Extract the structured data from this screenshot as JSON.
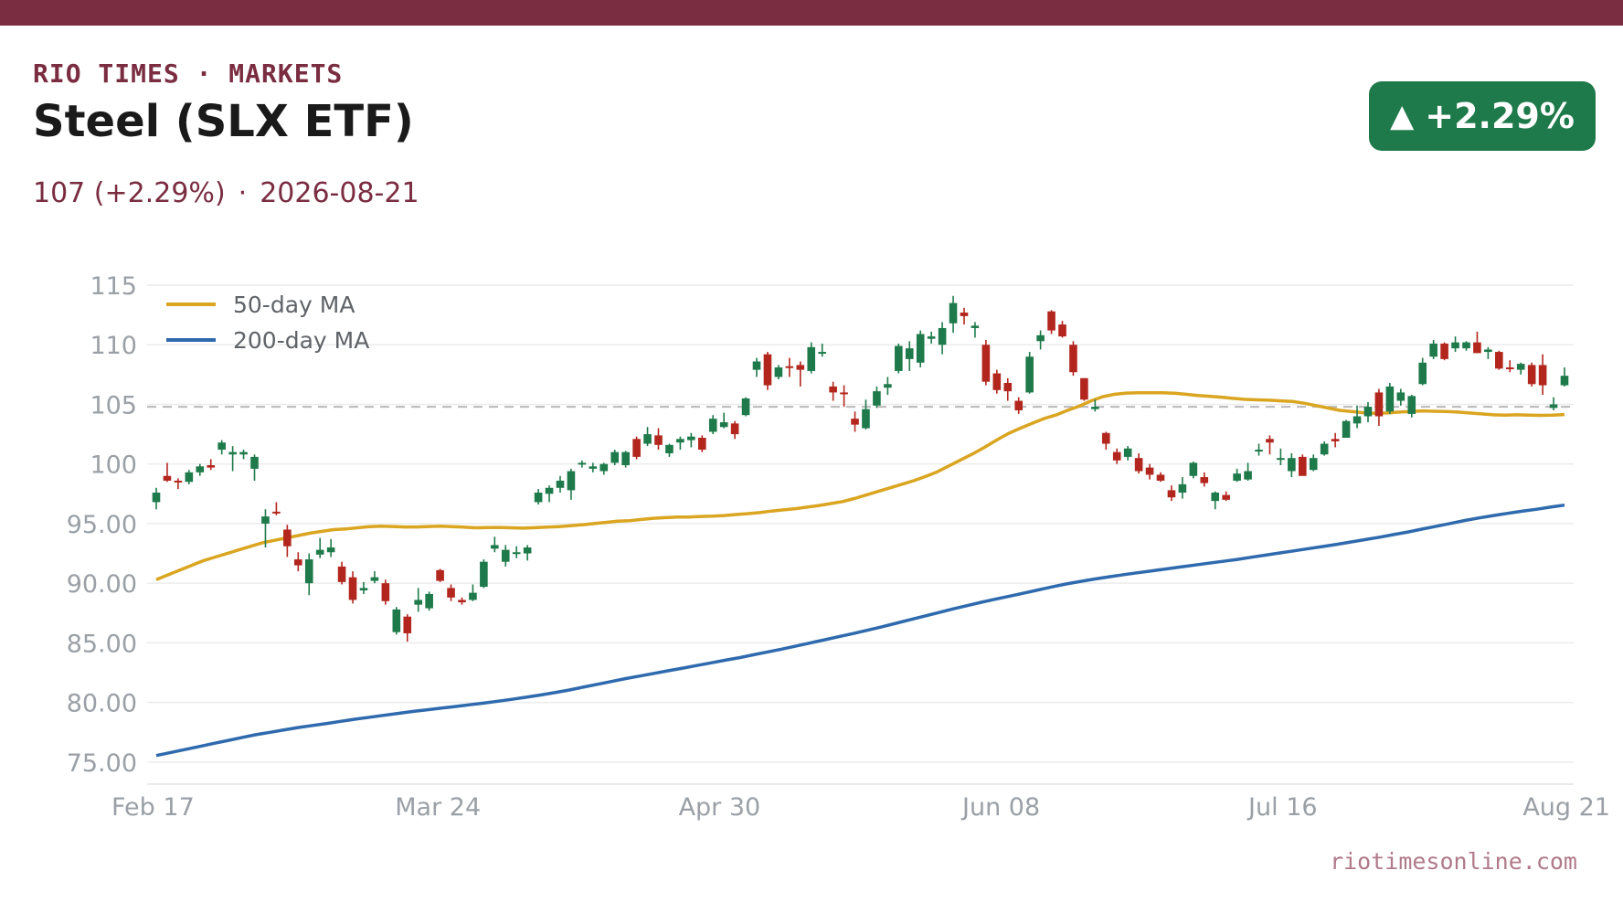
{
  "header": {
    "brand": "RIO TIMES · MARKETS",
    "title": "Steel (SLX ETF)",
    "price_text": "107 (+2.29%)",
    "separator": "·",
    "date": "2026-08-21",
    "badge_arrow": "▲",
    "badge_text": "+2.29%"
  },
  "footer": {
    "source": "riotimesonline.com"
  },
  "colors": {
    "brand": "#7a2c40",
    "up": "#1e7a4a",
    "down": "#b3261e",
    "ma50": "#daa520",
    "ma200": "#2e6aad",
    "grid": "#ececec",
    "tick": "#9aa0a6",
    "ref_line": "#b9b9b9",
    "footer": "#b07a8a",
    "legend_text": "#5f6368"
  },
  "chart_data": {
    "type": "candlestick",
    "title": "Steel (SLX ETF)",
    "y_tick_labels": [
      "75.00",
      "80.00",
      "85.00",
      "90.00",
      "95.00",
      "100",
      "105",
      "110",
      "115"
    ],
    "y_ticks": [
      75,
      80,
      85,
      90,
      95,
      100,
      105,
      110,
      115
    ],
    "ylim": [
      74.3,
      115
    ],
    "x_tick_labels": [
      "Feb 17",
      "Mar 24",
      "Apr 30",
      "Jun 08",
      "Jul 16",
      "Aug 21"
    ],
    "reference_line": 104.8,
    "grid": true,
    "legend_position": "top-left",
    "legend": [
      {
        "name": "50-day MA",
        "color_key": "ma50"
      },
      {
        "name": "200-day MA",
        "color_key": "ma200"
      }
    ],
    "candles_ohlc": [
      [
        96.8,
        98.0,
        96.2,
        97.6
      ],
      [
        99.0,
        100.1,
        98.5,
        98.6
      ],
      [
        98.6,
        98.8,
        97.9,
        98.5
      ],
      [
        98.5,
        99.5,
        98.3,
        99.3
      ],
      [
        99.3,
        100.0,
        99.0,
        99.8
      ],
      [
        99.9,
        100.4,
        99.5,
        99.7
      ],
      [
        101.2,
        102.0,
        100.8,
        101.8
      ],
      [
        100.8,
        101.5,
        99.4,
        101.0
      ],
      [
        100.8,
        101.2,
        100.4,
        101.0
      ],
      [
        99.6,
        100.8,
        98.6,
        100.6
      ],
      [
        95.0,
        96.2,
        93.0,
        95.6
      ],
      [
        96.0,
        96.8,
        95.7,
        95.9
      ],
      [
        94.5,
        94.9,
        92.2,
        93.1
      ],
      [
        92.0,
        92.6,
        91.0,
        91.5
      ],
      [
        90.0,
        92.5,
        89.0,
        92.0
      ],
      [
        92.4,
        93.8,
        92.1,
        92.8
      ],
      [
        92.6,
        93.7,
        92.2,
        93.0
      ],
      [
        91.4,
        91.8,
        89.9,
        90.1
      ],
      [
        90.5,
        91.0,
        88.3,
        88.6
      ],
      [
        89.4,
        90.1,
        89.1,
        89.6
      ],
      [
        90.2,
        91.0,
        90.0,
        90.5
      ],
      [
        90.0,
        90.3,
        88.2,
        88.5
      ],
      [
        85.9,
        88.0,
        85.7,
        87.8
      ],
      [
        87.2,
        87.4,
        85.1,
        85.8
      ],
      [
        88.2,
        89.6,
        87.6,
        88.6
      ],
      [
        87.9,
        89.3,
        87.7,
        89.1
      ],
      [
        91.1,
        91.2,
        90.1,
        90.2
      ],
      [
        89.6,
        89.9,
        88.5,
        88.8
      ],
      [
        88.6,
        88.8,
        88.2,
        88.4
      ],
      [
        88.6,
        89.9,
        88.5,
        89.2
      ],
      [
        89.7,
        92.0,
        89.6,
        91.8
      ],
      [
        92.9,
        93.9,
        92.6,
        93.2
      ],
      [
        91.8,
        93.2,
        91.4,
        92.8
      ],
      [
        92.6,
        93.1,
        92.1,
        92.6
      ],
      [
        92.5,
        93.2,
        91.9,
        93.0
      ],
      [
        96.8,
        97.9,
        96.6,
        97.6
      ],
      [
        97.5,
        98.2,
        96.8,
        98.0
      ],
      [
        98.0,
        99.0,
        97.6,
        98.6
      ],
      [
        97.8,
        99.6,
        97.0,
        99.4
      ],
      [
        100.0,
        100.3,
        99.7,
        100.1
      ],
      [
        99.6,
        100.1,
        99.3,
        99.8
      ],
      [
        99.4,
        100.1,
        99.1,
        100.0
      ],
      [
        100.1,
        101.2,
        99.9,
        101.0
      ],
      [
        99.9,
        101.1,
        99.7,
        101.0
      ],
      [
        102.1,
        102.3,
        100.4,
        100.6
      ],
      [
        101.7,
        103.1,
        101.5,
        102.5
      ],
      [
        102.4,
        103.0,
        101.2,
        101.6
      ],
      [
        100.9,
        101.7,
        100.6,
        101.6
      ],
      [
        101.8,
        102.3,
        101.2,
        102.1
      ],
      [
        102.0,
        102.6,
        101.4,
        102.3
      ],
      [
        102.2,
        102.4,
        101.0,
        101.2
      ],
      [
        102.7,
        104.1,
        102.5,
        103.8
      ],
      [
        103.1,
        104.3,
        103.0,
        103.5
      ],
      [
        103.4,
        103.6,
        102.1,
        102.5
      ],
      [
        104.1,
        105.6,
        104.0,
        105.5
      ],
      [
        107.9,
        108.9,
        107.3,
        108.6
      ],
      [
        109.2,
        109.4,
        106.2,
        106.6
      ],
      [
        107.3,
        108.3,
        107.1,
        108.1
      ],
      [
        108.2,
        108.9,
        107.3,
        108.1
      ],
      [
        108.3,
        108.6,
        106.5,
        107.9
      ],
      [
        107.8,
        110.2,
        107.6,
        109.8
      ],
      [
        109.3,
        110.1,
        109.0,
        109.4
      ],
      [
        106.5,
        106.9,
        105.3,
        106.0
      ],
      [
        106.0,
        106.6,
        104.8,
        105.9
      ],
      [
        103.8,
        104.4,
        102.7,
        103.3
      ],
      [
        103.0,
        105.4,
        102.9,
        104.6
      ],
      [
        104.9,
        106.5,
        104.7,
        106.1
      ],
      [
        106.4,
        107.3,
        105.8,
        106.7
      ],
      [
        107.8,
        110.1,
        107.6,
        109.9
      ],
      [
        108.8,
        110.3,
        107.8,
        109.7
      ],
      [
        108.5,
        111.2,
        108.1,
        110.9
      ],
      [
        110.5,
        111.1,
        110.1,
        110.7
      ],
      [
        110.0,
        111.9,
        109.2,
        111.4
      ],
      [
        111.8,
        114.1,
        111.0,
        113.5
      ],
      [
        112.7,
        113.1,
        111.7,
        112.4
      ],
      [
        111.4,
        111.9,
        110.6,
        111.6
      ],
      [
        110.0,
        110.4,
        106.6,
        106.9
      ],
      [
        107.6,
        107.9,
        105.9,
        106.2
      ],
      [
        106.8,
        107.2,
        105.3,
        106.1
      ],
      [
        105.3,
        105.6,
        104.2,
        104.5
      ],
      [
        106.0,
        109.4,
        105.9,
        109.0
      ],
      [
        110.3,
        111.2,
        109.6,
        110.8
      ],
      [
        112.8,
        112.9,
        110.9,
        111.2
      ],
      [
        111.7,
        112.0,
        110.6,
        110.7
      ],
      [
        110.0,
        110.3,
        107.4,
        107.7
      ],
      [
        107.2,
        107.2,
        105.3,
        105.4
      ],
      [
        104.6,
        105.4,
        104.4,
        104.8
      ],
      [
        102.6,
        102.7,
        101.2,
        101.7
      ],
      [
        101.0,
        101.3,
        100.0,
        100.3
      ],
      [
        100.6,
        101.5,
        100.3,
        101.3
      ],
      [
        100.5,
        100.9,
        99.2,
        99.4
      ],
      [
        99.7,
        100.0,
        98.7,
        99.1
      ],
      [
        99.1,
        99.3,
        98.5,
        98.6
      ],
      [
        97.8,
        98.2,
        96.9,
        97.2
      ],
      [
        97.6,
        98.9,
        97.1,
        98.3
      ],
      [
        99.0,
        100.2,
        98.8,
        100.1
      ],
      [
        98.9,
        99.3,
        98.1,
        98.4
      ],
      [
        96.9,
        97.7,
        96.2,
        97.6
      ],
      [
        97.4,
        97.7,
        96.9,
        97.0
      ],
      [
        98.6,
        99.6,
        98.5,
        99.2
      ],
      [
        98.7,
        100.1,
        98.6,
        99.4
      ],
      [
        101.1,
        101.7,
        100.7,
        101.2
      ],
      [
        102.1,
        102.4,
        100.8,
        101.8
      ],
      [
        100.5,
        101.3,
        99.9,
        100.5
      ],
      [
        99.4,
        100.9,
        98.9,
        100.5
      ],
      [
        100.6,
        100.8,
        99.0,
        99.0
      ],
      [
        99.5,
        100.8,
        99.4,
        100.5
      ],
      [
        100.8,
        101.9,
        100.7,
        101.7
      ],
      [
        102.1,
        102.6,
        101.4,
        101.9
      ],
      [
        102.2,
        103.7,
        102.2,
        103.6
      ],
      [
        103.4,
        104.9,
        103.0,
        104.0
      ],
      [
        104.0,
        105.2,
        103.5,
        104.8
      ],
      [
        106.0,
        106.3,
        103.2,
        104.0
      ],
      [
        104.4,
        106.8,
        104.2,
        106.5
      ],
      [
        105.3,
        106.3,
        104.9,
        106.0
      ],
      [
        104.2,
        105.8,
        103.9,
        105.7
      ],
      [
        106.7,
        108.9,
        106.6,
        108.5
      ],
      [
        109.0,
        110.4,
        108.8,
        110.1
      ],
      [
        110.1,
        110.2,
        108.7,
        108.8
      ],
      [
        109.7,
        110.7,
        109.4,
        110.2
      ],
      [
        109.7,
        110.3,
        109.5,
        110.2
      ],
      [
        110.2,
        111.1,
        109.3,
        109.3
      ],
      [
        109.4,
        109.8,
        108.8,
        109.6
      ],
      [
        109.4,
        109.5,
        107.9,
        108.0
      ],
      [
        108.1,
        108.7,
        107.7,
        108.0
      ],
      [
        107.9,
        108.5,
        107.5,
        108.4
      ],
      [
        108.3,
        108.5,
        106.5,
        106.7
      ],
      [
        108.3,
        109.2,
        105.8,
        106.6
      ],
      [
        104.7,
        105.6,
        104.5,
        105.0
      ],
      [
        106.6,
        108.1,
        106.5,
        107.4
      ]
    ],
    "series": [
      {
        "name": "50-day MA",
        "values": [
          90.3,
          90.7,
          91.1,
          91.5,
          91.9,
          92.2,
          92.5,
          92.8,
          93.1,
          93.4,
          93.6,
          93.8,
          94.0,
          94.2,
          94.35,
          94.5,
          94.55,
          94.65,
          94.75,
          94.78,
          94.76,
          94.72,
          94.72,
          94.76,
          94.78,
          94.75,
          94.7,
          94.65,
          94.67,
          94.68,
          94.65,
          94.62,
          94.66,
          94.7,
          94.75,
          94.82,
          94.9,
          95.0,
          95.1,
          95.2,
          95.25,
          95.35,
          95.45,
          95.5,
          95.55,
          95.55,
          95.6,
          95.62,
          95.68,
          95.76,
          95.84,
          95.92,
          96.05,
          96.15,
          96.25,
          96.38,
          96.52,
          96.68,
          96.85,
          97.1,
          97.4,
          97.7,
          98.0,
          98.3,
          98.6,
          98.95,
          99.35,
          99.85,
          100.35,
          100.85,
          101.4,
          102.0,
          102.55,
          103.0,
          103.4,
          103.8,
          104.1,
          104.5,
          104.85,
          105.3,
          105.65,
          105.85,
          105.95,
          105.97,
          105.98,
          105.97,
          105.93,
          105.85,
          105.75,
          105.68,
          105.6,
          105.5,
          105.42,
          105.38,
          105.35,
          105.3,
          105.25,
          105.1,
          104.9,
          104.7,
          104.5,
          104.4,
          104.3,
          104.25,
          104.28,
          104.35,
          104.4,
          104.45,
          104.42,
          104.4,
          104.35,
          104.28,
          104.2,
          104.12,
          104.1,
          104.12,
          104.1,
          104.08,
          104.1,
          104.15
        ]
      },
      {
        "name": "200-day MA",
        "values": [
          75.55,
          75.8,
          76.05,
          76.3,
          76.55,
          76.8,
          77.05,
          77.3,
          77.5,
          77.7,
          77.9,
          78.07,
          78.24,
          78.42,
          78.6,
          78.76,
          78.92,
          79.08,
          79.24,
          79.38,
          79.52,
          79.66,
          79.8,
          79.94,
          80.1,
          80.26,
          80.44,
          80.62,
          80.82,
          81.04,
          81.28,
          81.52,
          81.76,
          82.0,
          82.22,
          82.44,
          82.66,
          82.88,
          83.1,
          83.32,
          83.54,
          83.76,
          84.0,
          84.24,
          84.48,
          84.74,
          85.0,
          85.26,
          85.52,
          85.78,
          86.06,
          86.34,
          86.64,
          86.94,
          87.24,
          87.54,
          87.84,
          88.12,
          88.4,
          88.66,
          88.92,
          89.18,
          89.44,
          89.7,
          89.94,
          90.16,
          90.36,
          90.54,
          90.72,
          90.88,
          91.04,
          91.2,
          91.36,
          91.52,
          91.68,
          91.84,
          92.0,
          92.18,
          92.36,
          92.54,
          92.72,
          92.9,
          93.08,
          93.26,
          93.46,
          93.66,
          93.86,
          94.08,
          94.3,
          94.54,
          94.78,
          95.02,
          95.26,
          95.48,
          95.68,
          95.86,
          96.04,
          96.2,
          96.38,
          96.55
        ]
      }
    ]
  }
}
